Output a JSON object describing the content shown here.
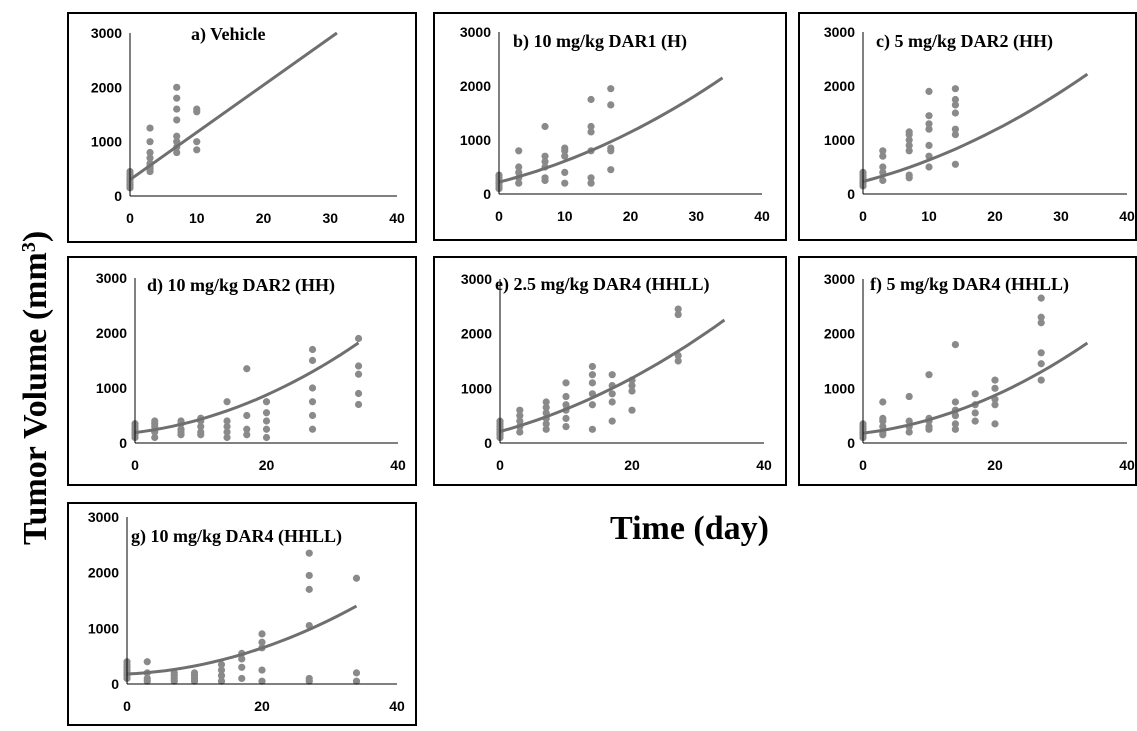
{
  "ylabel_main": "Tumor Volume (mm",
  "ylabel_sup": "3",
  "ylabel_close": ")",
  "xlabel": "Time (day)",
  "colors": {
    "points": "#8a8a8a",
    "line": "#6f6f6f",
    "border": "#000000"
  },
  "chart_data": [
    {
      "type": "scatter",
      "title": "Vehicle",
      "label_letter": "a)",
      "xlim": [
        0,
        40
      ],
      "ylim": [
        0,
        3000
      ],
      "xticks": [
        0,
        10,
        20,
        30,
        40
      ],
      "yticks": [
        0,
        1000,
        2000,
        3000
      ],
      "points": [
        [
          0,
          150
        ],
        [
          0,
          200
        ],
        [
          0,
          250
        ],
        [
          0,
          300
        ],
        [
          0,
          350
        ],
        [
          0,
          400
        ],
        [
          0,
          450
        ],
        [
          3,
          450
        ],
        [
          3,
          500
        ],
        [
          3,
          550
        ],
        [
          3,
          600
        ],
        [
          3,
          700
        ],
        [
          3,
          800
        ],
        [
          3,
          1000
        ],
        [
          3,
          1250
        ],
        [
          7,
          800
        ],
        [
          7,
          900
        ],
        [
          7,
          1000
        ],
        [
          7,
          1100
        ],
        [
          7,
          1400
        ],
        [
          7,
          1600
        ],
        [
          7,
          1800
        ],
        [
          7,
          2000
        ],
        [
          10,
          850
        ],
        [
          10,
          1000
        ],
        [
          10,
          1550
        ],
        [
          10,
          1600
        ]
      ],
      "fit": [
        [
          0,
          300
        ],
        [
          31,
          3000
        ]
      ]
    },
    {
      "type": "scatter",
      "title": "10 mg/kg DAR1 (H)",
      "label_letter": "b)",
      "xlim": [
        0,
        40
      ],
      "ylim": [
        0,
        3000
      ],
      "xticks": [
        0,
        10,
        20,
        30,
        40
      ],
      "yticks": [
        0,
        1000,
        2000,
        3000
      ],
      "points": [
        [
          0,
          100
        ],
        [
          0,
          150
        ],
        [
          0,
          200
        ],
        [
          0,
          250
        ],
        [
          0,
          300
        ],
        [
          0,
          350
        ],
        [
          3,
          200
        ],
        [
          3,
          300
        ],
        [
          3,
          400
        ],
        [
          3,
          500
        ],
        [
          3,
          800
        ],
        [
          7,
          250
        ],
        [
          7,
          300
        ],
        [
          7,
          500
        ],
        [
          7,
          600
        ],
        [
          7,
          700
        ],
        [
          7,
          1250
        ],
        [
          10,
          200
        ],
        [
          10,
          400
        ],
        [
          10,
          700
        ],
        [
          10,
          800
        ],
        [
          10,
          850
        ],
        [
          14,
          200
        ],
        [
          14,
          300
        ],
        [
          14,
          800
        ],
        [
          14,
          1150
        ],
        [
          14,
          1250
        ],
        [
          14,
          1750
        ],
        [
          17,
          450
        ],
        [
          17,
          800
        ],
        [
          17,
          850
        ],
        [
          17,
          1650
        ],
        [
          17,
          1950
        ]
      ],
      "fit": [
        [
          0,
          220
        ],
        [
          34,
          2150
        ]
      ]
    },
    {
      "type": "scatter",
      "title": "5 mg/kg DAR2 (HH)",
      "label_letter": "c)",
      "xlim": [
        0,
        40
      ],
      "ylim": [
        0,
        3000
      ],
      "xticks": [
        0,
        10,
        20,
        30,
        40
      ],
      "yticks": [
        0,
        1000,
        2000,
        3000
      ],
      "points": [
        [
          0,
          150
        ],
        [
          0,
          200
        ],
        [
          0,
          250
        ],
        [
          0,
          300
        ],
        [
          0,
          350
        ],
        [
          0,
          400
        ],
        [
          3,
          250
        ],
        [
          3,
          400
        ],
        [
          3,
          500
        ],
        [
          3,
          700
        ],
        [
          3,
          800
        ],
        [
          7,
          300
        ],
        [
          7,
          350
        ],
        [
          7,
          800
        ],
        [
          7,
          900
        ],
        [
          7,
          1000
        ],
        [
          7,
          1100
        ],
        [
          7,
          1150
        ],
        [
          10,
          500
        ],
        [
          10,
          700
        ],
        [
          10,
          900
        ],
        [
          10,
          1200
        ],
        [
          10,
          1300
        ],
        [
          10,
          1450
        ],
        [
          10,
          1900
        ],
        [
          14,
          550
        ],
        [
          14,
          1100
        ],
        [
          14,
          1200
        ],
        [
          14,
          1500
        ],
        [
          14,
          1650
        ],
        [
          14,
          1750
        ],
        [
          14,
          1950
        ]
      ],
      "fit": [
        [
          0,
          230
        ],
        [
          34,
          2220
        ]
      ]
    },
    {
      "type": "scatter",
      "title": "10 mg/kg DAR2 (HH)",
      "label_letter": "d)",
      "xlim": [
        0,
        40
      ],
      "ylim": [
        0,
        3000
      ],
      "xticks": [
        0,
        20,
        40
      ],
      "yticks": [
        0,
        1000,
        2000,
        3000
      ],
      "points": [
        [
          0,
          100
        ],
        [
          0,
          150
        ],
        [
          0,
          200
        ],
        [
          0,
          250
        ],
        [
          0,
          300
        ],
        [
          0,
          350
        ],
        [
          3,
          100
        ],
        [
          3,
          200
        ],
        [
          3,
          300
        ],
        [
          3,
          350
        ],
        [
          3,
          400
        ],
        [
          7,
          150
        ],
        [
          7,
          200
        ],
        [
          7,
          250
        ],
        [
          7,
          350
        ],
        [
          7,
          400
        ],
        [
          10,
          150
        ],
        [
          10,
          200
        ],
        [
          10,
          300
        ],
        [
          10,
          400
        ],
        [
          10,
          450
        ],
        [
          14,
          100
        ],
        [
          14,
          200
        ],
        [
          14,
          300
        ],
        [
          14,
          400
        ],
        [
          14,
          750
        ],
        [
          17,
          150
        ],
        [
          17,
          250
        ],
        [
          17,
          500
        ],
        [
          17,
          1350
        ],
        [
          20,
          100
        ],
        [
          20,
          250
        ],
        [
          20,
          400
        ],
        [
          20,
          550
        ],
        [
          20,
          750
        ],
        [
          27,
          250
        ],
        [
          27,
          500
        ],
        [
          27,
          750
        ],
        [
          27,
          1000
        ],
        [
          27,
          1500
        ],
        [
          27,
          1700
        ],
        [
          34,
          700
        ],
        [
          34,
          900
        ],
        [
          34,
          1250
        ],
        [
          34,
          1400
        ],
        [
          34,
          1900
        ]
      ],
      "fit": [
        [
          0,
          190
        ],
        [
          34,
          1820
        ]
      ]
    },
    {
      "type": "scatter",
      "title": "2.5 mg/kg DAR4 (HHLL)",
      "label_letter": "e)",
      "xlim": [
        0,
        40
      ],
      "ylim": [
        0,
        3000
      ],
      "xticks": [
        0,
        20,
        40
      ],
      "yticks": [
        0,
        1000,
        2000,
        3000
      ],
      "points": [
        [
          0,
          100
        ],
        [
          0,
          150
        ],
        [
          0,
          200
        ],
        [
          0,
          250
        ],
        [
          0,
          300
        ],
        [
          0,
          350
        ],
        [
          0,
          400
        ],
        [
          3,
          200
        ],
        [
          3,
          300
        ],
        [
          3,
          400
        ],
        [
          3,
          500
        ],
        [
          3,
          600
        ],
        [
          7,
          250
        ],
        [
          7,
          350
        ],
        [
          7,
          450
        ],
        [
          7,
          550
        ],
        [
          7,
          650
        ],
        [
          7,
          750
        ],
        [
          10,
          300
        ],
        [
          10,
          450
        ],
        [
          10,
          600
        ],
        [
          10,
          700
        ],
        [
          10,
          850
        ],
        [
          10,
          1100
        ],
        [
          14,
          250
        ],
        [
          14,
          700
        ],
        [
          14,
          900
        ],
        [
          14,
          1100
        ],
        [
          14,
          1250
        ],
        [
          14,
          1400
        ],
        [
          17,
          400
        ],
        [
          17,
          750
        ],
        [
          17,
          900
        ],
        [
          17,
          1050
        ],
        [
          17,
          1250
        ],
        [
          20,
          600
        ],
        [
          20,
          950
        ],
        [
          20,
          1050
        ],
        [
          20,
          1150
        ],
        [
          27,
          1500
        ],
        [
          27,
          1600
        ],
        [
          27,
          2350
        ],
        [
          27,
          2450
        ]
      ],
      "fit": [
        [
          0,
          210
        ],
        [
          34,
          2250
        ]
      ]
    },
    {
      "type": "scatter",
      "title": "5 mg/kg DAR4 (HHLL)",
      "label_letter": "f)",
      "xlim": [
        0,
        40
      ],
      "ylim": [
        0,
        3000
      ],
      "xticks": [
        0,
        20,
        40
      ],
      "yticks": [
        0,
        1000,
        2000,
        3000
      ],
      "points": [
        [
          0,
          100
        ],
        [
          0,
          150
        ],
        [
          0,
          200
        ],
        [
          0,
          250
        ],
        [
          0,
          300
        ],
        [
          0,
          350
        ],
        [
          3,
          150
        ],
        [
          3,
          200
        ],
        [
          3,
          300
        ],
        [
          3,
          400
        ],
        [
          3,
          450
        ],
        [
          3,
          750
        ],
        [
          7,
          200
        ],
        [
          7,
          300
        ],
        [
          7,
          400
        ],
        [
          7,
          850
        ],
        [
          10,
          250
        ],
        [
          10,
          300
        ],
        [
          10,
          400
        ],
        [
          10,
          450
        ],
        [
          10,
          1250
        ],
        [
          14,
          250
        ],
        [
          14,
          350
        ],
        [
          14,
          500
        ],
        [
          14,
          600
        ],
        [
          14,
          750
        ],
        [
          14,
          1800
        ],
        [
          17,
          400
        ],
        [
          17,
          550
        ],
        [
          17,
          700
        ],
        [
          17,
          900
        ],
        [
          20,
          350
        ],
        [
          20,
          700
        ],
        [
          20,
          800
        ],
        [
          20,
          1000
        ],
        [
          20,
          1150
        ],
        [
          27,
          1150
        ],
        [
          27,
          1450
        ],
        [
          27,
          1650
        ],
        [
          27,
          2200
        ],
        [
          27,
          2300
        ],
        [
          27,
          2650
        ]
      ],
      "fit": [
        [
          0,
          180
        ],
        [
          34,
          1830
        ]
      ]
    },
    {
      "type": "scatter",
      "title": "10 mg/kg DAR4 (HHLL)",
      "label_letter": "g)",
      "xlim": [
        0,
        40
      ],
      "ylim": [
        0,
        3000
      ],
      "xticks": [
        0,
        20,
        40
      ],
      "yticks": [
        0,
        1000,
        2000,
        3000
      ],
      "points": [
        [
          0,
          100
        ],
        [
          0,
          150
        ],
        [
          0,
          200
        ],
        [
          0,
          250
        ],
        [
          0,
          300
        ],
        [
          0,
          350
        ],
        [
          0,
          400
        ],
        [
          3,
          50
        ],
        [
          3,
          100
        ],
        [
          3,
          200
        ],
        [
          3,
          400
        ],
        [
          7,
          50
        ],
        [
          7,
          100
        ],
        [
          7,
          150
        ],
        [
          7,
          200
        ],
        [
          10,
          50
        ],
        [
          10,
          100
        ],
        [
          10,
          150
        ],
        [
          10,
          200
        ],
        [
          14,
          50
        ],
        [
          14,
          150
        ],
        [
          14,
          250
        ],
        [
          14,
          350
        ],
        [
          17,
          100
        ],
        [
          17,
          300
        ],
        [
          17,
          450
        ],
        [
          17,
          550
        ],
        [
          20,
          50
        ],
        [
          20,
          250
        ],
        [
          20,
          650
        ],
        [
          20,
          750
        ],
        [
          20,
          900
        ],
        [
          27,
          50
        ],
        [
          27,
          100
        ],
        [
          27,
          1050
        ],
        [
          27,
          1700
        ],
        [
          27,
          1950
        ],
        [
          27,
          2350
        ],
        [
          34,
          50
        ],
        [
          34,
          200
        ],
        [
          34,
          1900
        ]
      ],
      "fit": [
        [
          0,
          180
        ],
        [
          34,
          1400
        ]
      ]
    }
  ]
}
